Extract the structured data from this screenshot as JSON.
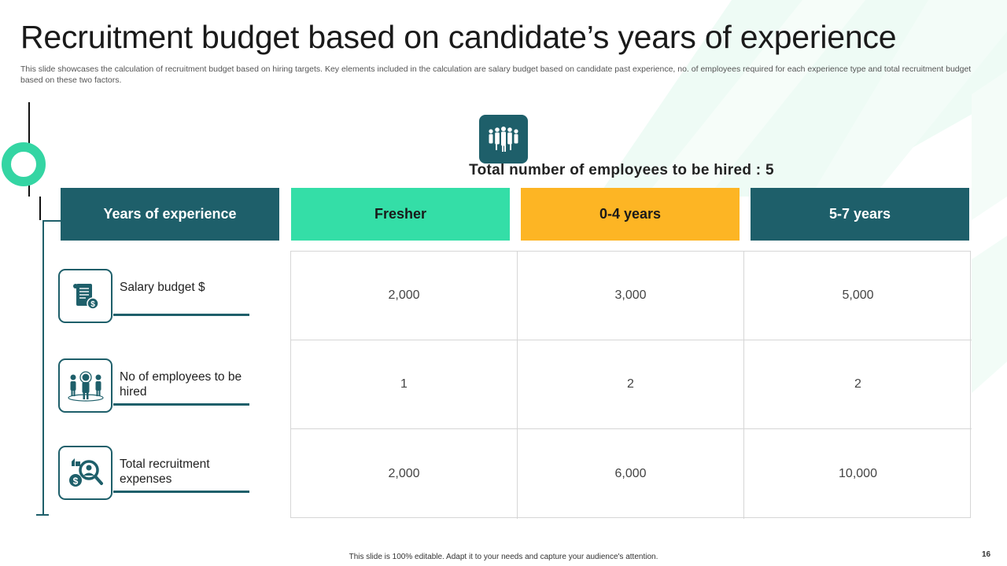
{
  "slide": {
    "title": "Recruitment budget based on candidate’s years of experience",
    "subtitle": "This slide showcases the calculation of recruitment budget based on hiring targets. Key elements included in the calculation are salary budget based on candidate past experience, no. of employees required for each experience type and total recruitment budget based on these two factors.",
    "hire_total": "Total number of employees  to be hired : 5",
    "footer": "This slide is 100% editable.  Adapt it to your needs and capture your audience's attention.",
    "page_number": "16"
  },
  "colors": {
    "teal": "#1e5f6a",
    "mint": "#34dea7",
    "amber": "#fdb524"
  },
  "table": {
    "header_label": "Years of experience",
    "columns": [
      "Fresher",
      "0-4 years",
      "5-7 years"
    ],
    "rows": [
      {
        "label": "Salary budget $",
        "icon": "salary-document-icon",
        "values": [
          "2,000",
          "3,000",
          "5,000"
        ]
      },
      {
        "label": "No of employees to be hired",
        "icon": "team-hiring-icon",
        "values": [
          "1",
          "2",
          "2"
        ]
      },
      {
        "label": "Total recruitment expenses",
        "icon": "recruitment-search-icon",
        "values": [
          "2,000",
          "6,000",
          "10,000"
        ]
      }
    ]
  },
  "icons": {
    "top": "group-of-people-icon"
  }
}
